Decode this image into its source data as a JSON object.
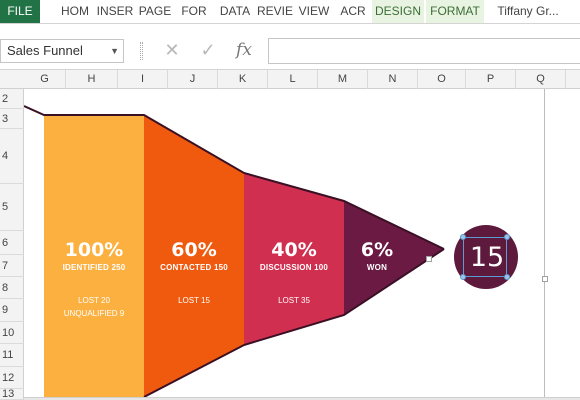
{
  "ribbon": {
    "tabs": [
      {
        "label": "FILE",
        "kind": "file"
      },
      {
        "label": "HOM",
        "kind": "normal"
      },
      {
        "label": "INSER",
        "kind": "normal"
      },
      {
        "label": "PAGE",
        "kind": "normal"
      },
      {
        "label": "FOR",
        "kind": "normal"
      },
      {
        "label": "DATA",
        "kind": "normal"
      },
      {
        "label": "REVIE",
        "kind": "normal"
      },
      {
        "label": "VIEW",
        "kind": "normal"
      },
      {
        "label": "ACR",
        "kind": "normal"
      },
      {
        "label": "DESIGN",
        "kind": "ctx"
      },
      {
        "label": "FORMAT",
        "kind": "ctx"
      },
      {
        "label": "Tiffany Gr...",
        "kind": "user"
      }
    ]
  },
  "formula_bar": {
    "name_box": "Sales Funnel",
    "cancel_icon": "x-icon",
    "enter_icon": "check-icon",
    "fx_label": "fx",
    "formula": ""
  },
  "columns": [
    "G",
    "H",
    "I",
    "J",
    "K",
    "L",
    "M",
    "N",
    "O",
    "P",
    "Q"
  ],
  "rows": [
    "2",
    "3",
    "4",
    "5",
    "6",
    "7",
    "8",
    "9",
    "10",
    "11",
    "12",
    "13"
  ],
  "side_buttons": [
    {
      "icon": "plus-icon"
    },
    {
      "icon": "brush-icon"
    },
    {
      "icon": "filter-icon"
    }
  ],
  "funnel": {
    "stages": [
      {
        "pct": "100%",
        "label": "IDENTIFIED 250",
        "lost": [
          "LOST 20",
          "UNQUALIFIED 9"
        ],
        "color": "#fbb040"
      },
      {
        "pct": "60%",
        "label": "CONTACTED 150",
        "lost": [
          "LOST 15"
        ],
        "color": "#f05a0f"
      },
      {
        "pct": "40%",
        "label": "DISCUSSION 100",
        "lost": [
          "LOST 35"
        ],
        "color": "#d12f4f"
      },
      {
        "pct": "6%",
        "label": "WON",
        "lost": [],
        "color": "#6b1a44"
      }
    ],
    "result": "15",
    "result_color": "#5e1a3c"
  }
}
